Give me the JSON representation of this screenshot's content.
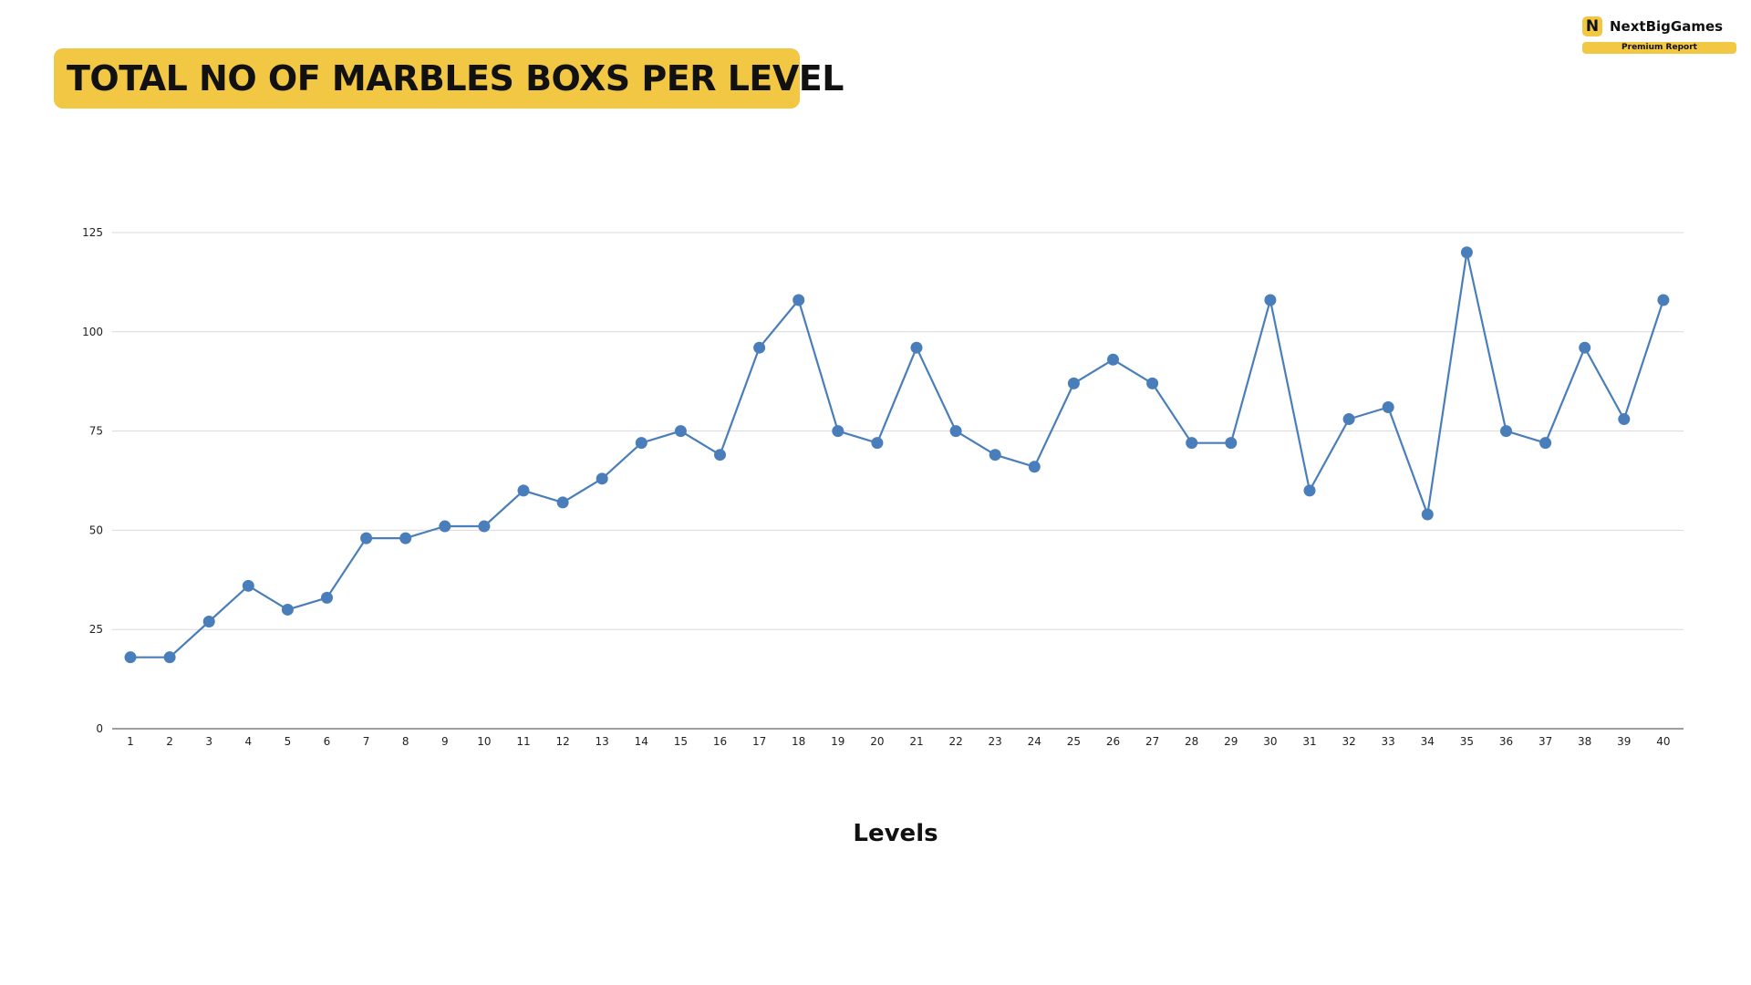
{
  "title": "TOTAL NO OF MARBLES BOXS PER LEVEL",
  "brand": {
    "logo_letter": "N",
    "name": "NextBigGames",
    "badge": "Premium Report",
    "color": "#f2c744"
  },
  "chart_data": {
    "type": "line",
    "title": "TOTAL NO OF MARBLES BOXS PER LEVEL",
    "xlabel": "Levels",
    "ylabel": "",
    "ylim": [
      0,
      125
    ],
    "yticks": [
      0,
      25,
      50,
      75,
      100,
      125
    ],
    "grid": true,
    "legend": "none",
    "line_color": "#4a7ebb",
    "x": [
      1,
      2,
      3,
      4,
      5,
      6,
      7,
      8,
      9,
      10,
      11,
      12,
      13,
      14,
      15,
      16,
      17,
      18,
      19,
      20,
      21,
      22,
      23,
      24,
      25,
      26,
      27,
      28,
      29,
      30,
      31,
      32,
      33,
      34,
      35,
      36,
      37,
      38,
      39,
      40
    ],
    "series": [
      {
        "values": [
          18,
          18,
          27,
          36,
          30,
          33,
          48,
          48,
          51,
          51,
          60,
          57,
          63,
          72,
          75,
          69,
          96,
          108,
          75,
          72,
          96,
          75,
          69,
          66,
          87,
          93,
          87,
          72,
          72,
          108,
          60,
          78,
          81,
          54,
          120,
          75,
          72,
          96,
          78,
          108
        ]
      }
    ]
  }
}
